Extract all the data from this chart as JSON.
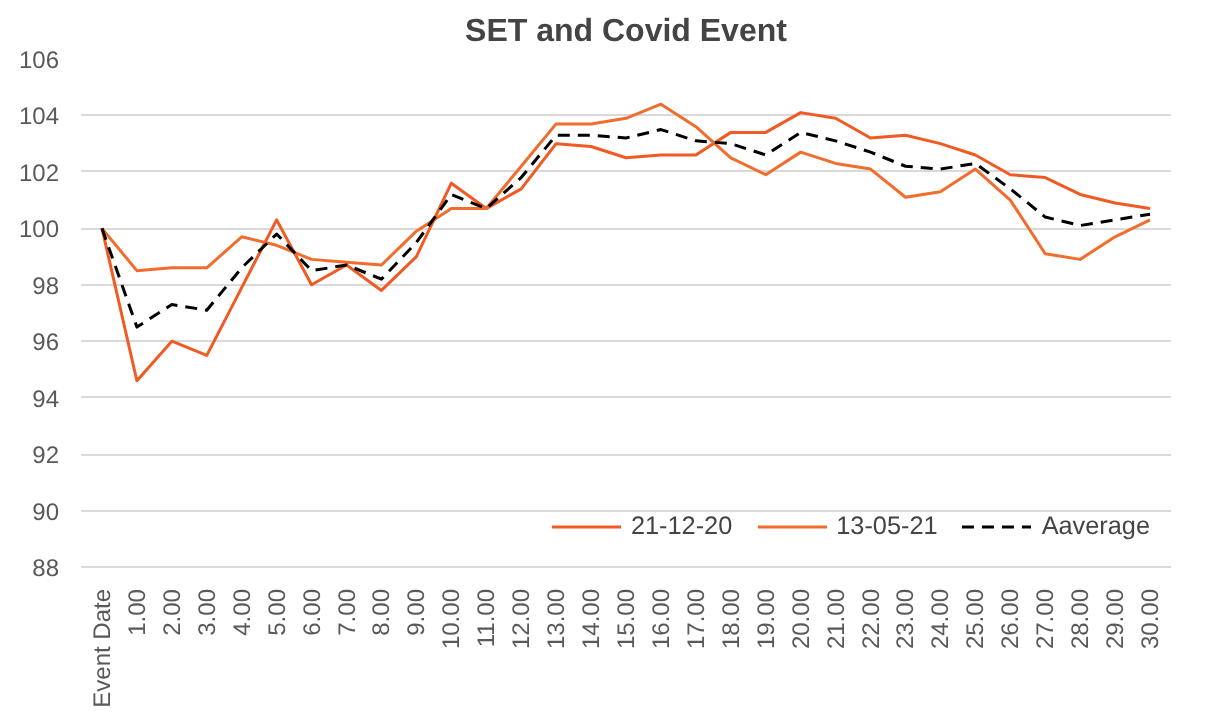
{
  "chart_data": {
    "type": "line",
    "title": "SET and Covid Event",
    "categories": [
      "Event Date",
      "1.00",
      "2.00",
      "3.00",
      "4.00",
      "5.00",
      "6.00",
      "7.00",
      "8.00",
      "9.00",
      "10.00",
      "11.00",
      "12.00",
      "13.00",
      "14.00",
      "15.00",
      "16.00",
      "17.00",
      "18.00",
      "19.00",
      "20.00",
      "21.00",
      "22.00",
      "23.00",
      "24.00",
      "25.00",
      "26.00",
      "27.00",
      "28.00",
      "29.00",
      "30.00"
    ],
    "series": [
      {
        "name": "21-12-20",
        "color": "#f05a23",
        "line_style": "solid",
        "values": [
          100,
          94.6,
          96.0,
          95.5,
          97.9,
          100.3,
          98.0,
          98.7,
          97.8,
          99.0,
          101.6,
          100.7,
          101.4,
          103.0,
          102.9,
          102.5,
          102.6,
          102.6,
          103.4,
          103.4,
          104.1,
          103.9,
          103.2,
          103.3,
          103.0,
          102.6,
          101.9,
          101.8,
          101.2,
          100.9,
          100.7
        ]
      },
      {
        "name": "13-05-21",
        "color": "#f26d2d",
        "line_style": "solid",
        "values": [
          100,
          98.5,
          98.6,
          98.6,
          99.7,
          99.4,
          98.9,
          98.8,
          98.7,
          99.9,
          100.7,
          100.7,
          102.2,
          103.7,
          103.7,
          103.9,
          104.4,
          103.6,
          102.5,
          101.9,
          102.7,
          102.3,
          102.1,
          101.1,
          101.3,
          102.1,
          101.0,
          99.1,
          98.9,
          99.7,
          100.3
        ]
      },
      {
        "name": "Aaverage",
        "color": "#000000",
        "line_style": "dashed",
        "values": [
          100,
          96.5,
          97.3,
          97.1,
          98.6,
          99.8,
          98.5,
          98.7,
          98.2,
          99.5,
          101.2,
          100.7,
          101.8,
          103.3,
          103.3,
          103.2,
          103.5,
          103.1,
          103.0,
          102.6,
          103.4,
          103.1,
          102.7,
          102.2,
          102.1,
          102.3,
          101.4,
          100.4,
          100.1,
          100.3,
          100.5
        ]
      }
    ],
    "ylim": [
      88,
      106
    ],
    "yticks": [
      88,
      90,
      92,
      94,
      96,
      98,
      100,
      102,
      104,
      106
    ],
    "grid": "y",
    "legend": "bottom right",
    "marker": "none"
  }
}
